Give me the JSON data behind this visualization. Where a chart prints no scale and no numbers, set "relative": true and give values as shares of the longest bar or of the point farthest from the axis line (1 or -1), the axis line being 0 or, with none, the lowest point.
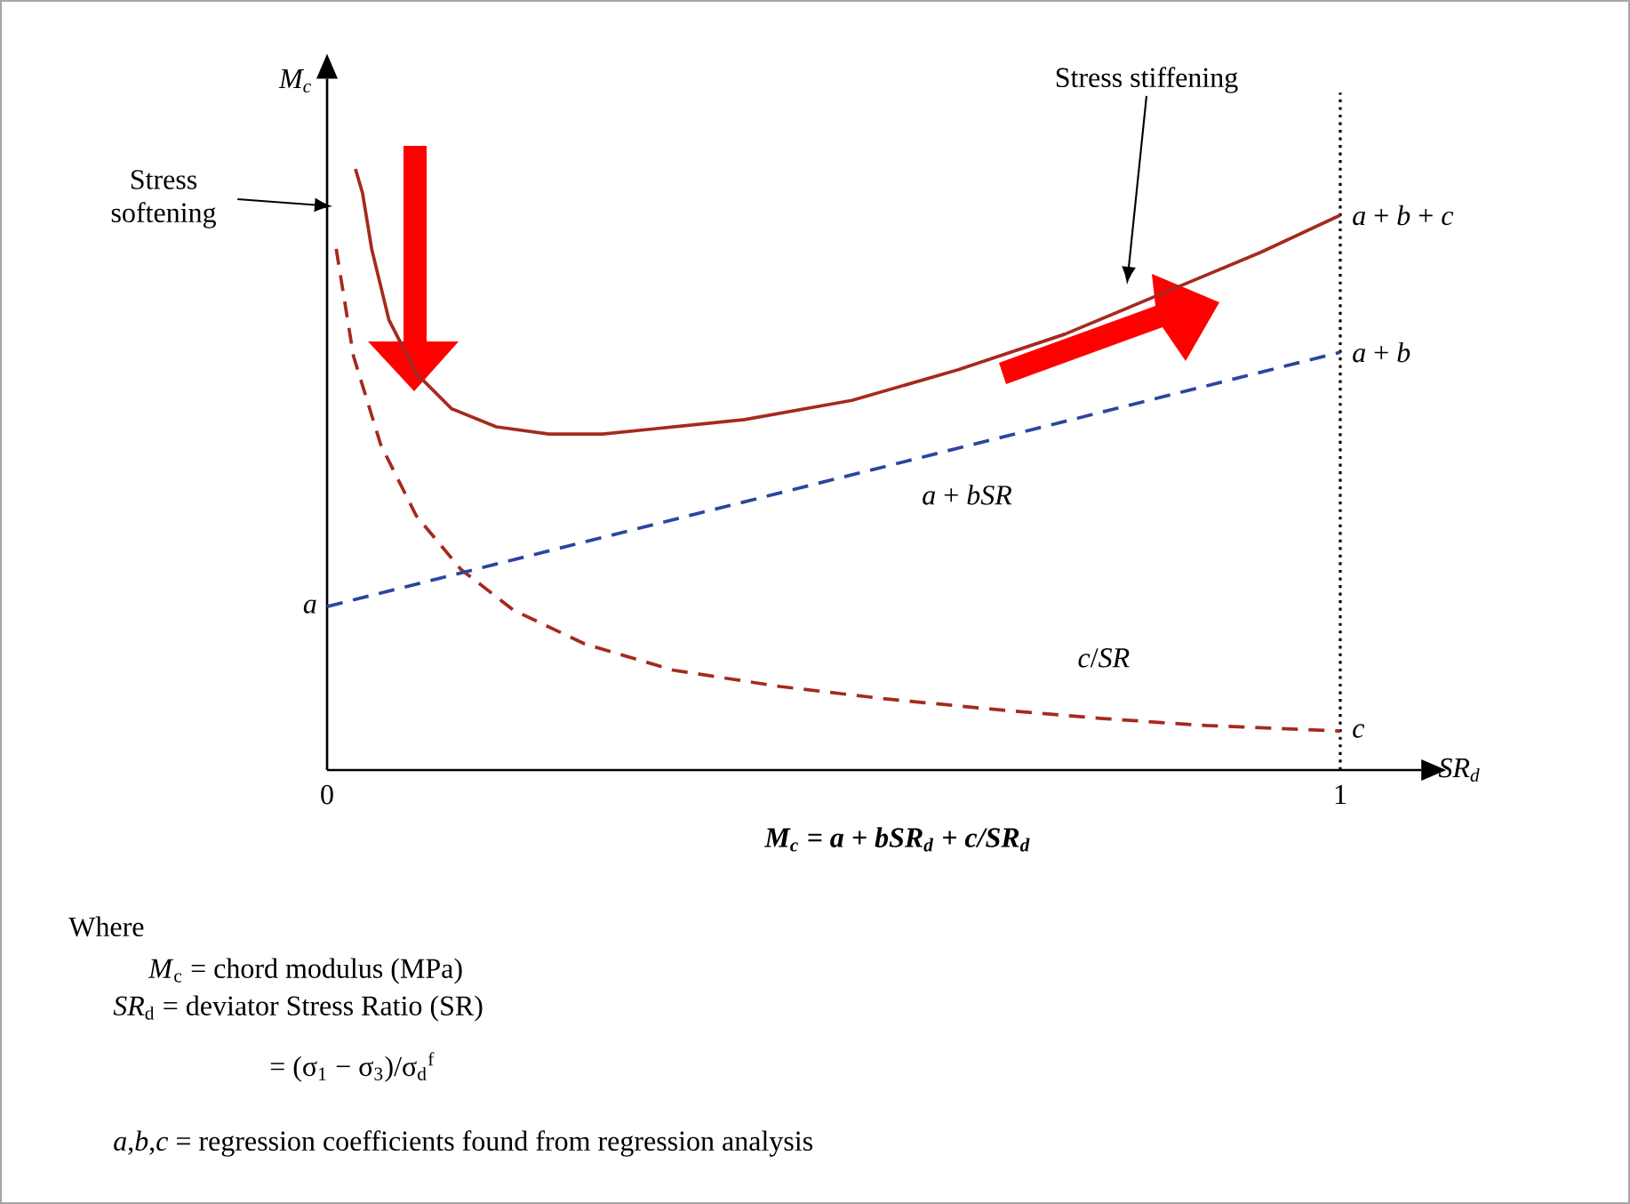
{
  "chart_data": {
    "type": "line",
    "relative": true,
    "xlabel": "SR$_{d}$",
    "ylabel": "M$_{c}$",
    "xlim": [
      0,
      1.08
    ],
    "xticks": [
      0,
      1
    ],
    "series": [
      {
        "color": "#a52a1e",
        "line_style": "solid",
        "x": [
          0.028,
          0.035,
          0.044,
          0.061,
          0.088,
          0.123,
          0.167,
          0.219,
          0.272,
          0.325,
          0.412,
          0.518,
          0.623,
          0.728,
          0.833,
          0.921,
          1
        ],
        "values": [
          1,
          0.96,
          0.867,
          0.749,
          0.66,
          0.601,
          0.571,
          0.559,
          0.559,
          0.568,
          0.583,
          0.615,
          0.666,
          0.725,
          0.799,
          0.861,
          0.923
        ]
      },
      {
        "color": "#a52a1e",
        "line_style": "dashed",
        "x": [
          0.009,
          0.026,
          0.053,
          0.088,
          0.132,
          0.184,
          0.254,
          0.342,
          0.447,
          0.553,
          0.658,
          0.763,
          0.868,
          1
        ],
        "values": [
          0.867,
          0.689,
          0.541,
          0.423,
          0.334,
          0.266,
          0.21,
          0.166,
          0.139,
          0.118,
          0.101,
          0.086,
          0.074,
          0.065
        ]
      },
      {
        "color": "#2b45a0",
        "line_style": "dashed",
        "x": [
          0,
          1
        ],
        "values": [
          0.272,
          0.695
        ]
      }
    ],
    "ref_lines": [
      {
        "axis": "x",
        "value": 1,
        "line_style": "dotted",
        "color": "#000000"
      }
    ],
    "annotations": [
      {
        "text": "*a*",
        "x": 0,
        "y": 0.272
      },
      {
        "text": "*a* + *b*",
        "x": 1,
        "y": 0.695
      },
      {
        "text": "*a* + *b* + *c*",
        "x": 1,
        "y": 0.923
      },
      {
        "text": "*c*",
        "x": 1,
        "y": 0.065
      },
      {
        "text": "*a* + *bSR*",
        "x": 0.6,
        "y": 0.526
      },
      {
        "text": "*c*/*SR*",
        "x": 0.763,
        "y": 0.086
      },
      "Stress softening",
      "Stress stiffening",
      "M$_{c}$ = a + bSR$_{d}$ + c/SR$_{d}$",
      "Where",
      "*M*$_{c}$ = chord modulus (MPa)",
      "*SR*$_{d}$ = deviator Stress Ratio (SR)",
      "= (σ$_{1}$ − σ$_{3}$)/σ$_{d}$$^{f}$",
      "*a*,*b*,*c* = regression coefficients found from regression analysis"
    ]
  }
}
